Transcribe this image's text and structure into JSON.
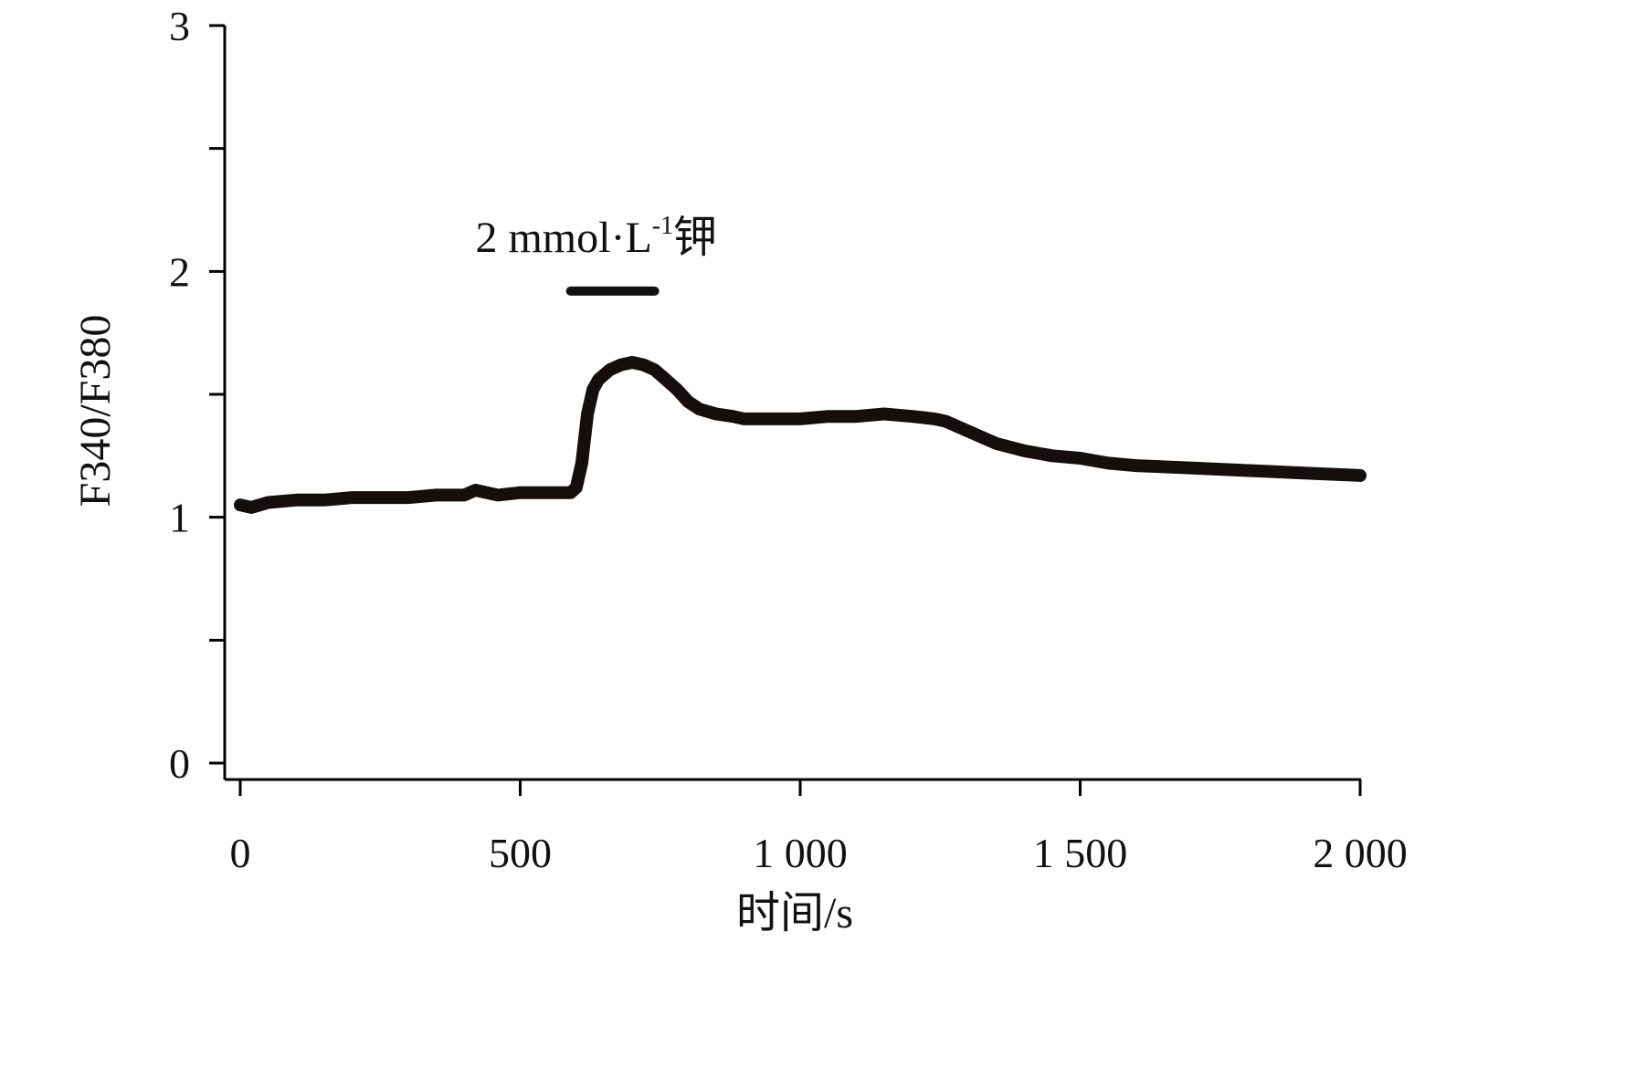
{
  "chart_data": {
    "type": "line",
    "title": "",
    "xlabel": "时间/s",
    "ylabel": "F340/F380",
    "xlim": [
      0,
      2000
    ],
    "ylim": [
      0,
      3
    ],
    "x_ticks": [
      {
        "value": 0,
        "label": "0"
      },
      {
        "value": 500,
        "label": "500"
      },
      {
        "value": 1000,
        "label": "1 000"
      },
      {
        "value": 1500,
        "label": "1 500"
      },
      {
        "value": 2000,
        "label": "2 000"
      }
    ],
    "y_ticks": [
      {
        "value": 0,
        "label": "0"
      },
      {
        "value": 0.5,
        "label": ""
      },
      {
        "value": 1,
        "label": "1"
      },
      {
        "value": 1.5,
        "label": ""
      },
      {
        "value": 2,
        "label": "2"
      },
      {
        "value": 2.5,
        "label": ""
      },
      {
        "value": 3,
        "label": "3"
      }
    ],
    "grid": false,
    "series": [
      {
        "color": "#140f0c",
        "x": [
          0,
          20,
          50,
          100,
          150,
          200,
          250,
          300,
          350,
          400,
          420,
          440,
          460,
          500,
          550,
          590,
          600,
          610,
          620,
          630,
          640,
          660,
          680,
          700,
          720,
          740,
          760,
          780,
          800,
          820,
          850,
          880,
          900,
          950,
          1000,
          1050,
          1100,
          1150,
          1200,
          1240,
          1260,
          1300,
          1350,
          1400,
          1450,
          1500,
          1550,
          1600,
          1700,
          1800,
          1900,
          2000
        ],
        "y": [
          1.05,
          1.04,
          1.06,
          1.07,
          1.07,
          1.08,
          1.08,
          1.08,
          1.09,
          1.09,
          1.11,
          1.1,
          1.09,
          1.1,
          1.1,
          1.1,
          1.12,
          1.22,
          1.42,
          1.52,
          1.56,
          1.6,
          1.62,
          1.63,
          1.62,
          1.6,
          1.56,
          1.52,
          1.47,
          1.44,
          1.42,
          1.41,
          1.4,
          1.4,
          1.4,
          1.41,
          1.41,
          1.42,
          1.41,
          1.4,
          1.39,
          1.35,
          1.3,
          1.27,
          1.25,
          1.24,
          1.22,
          1.21,
          1.2,
          1.19,
          1.18,
          1.17
        ]
      }
    ],
    "annotations": [
      {
        "text": "2 mmol·L",
        "superscript": "-1",
        "suffix": "钾",
        "x_start": 590,
        "x_end": 740,
        "bar_y": 1.92,
        "text_x": 420,
        "text_y": 2.08
      }
    ]
  }
}
